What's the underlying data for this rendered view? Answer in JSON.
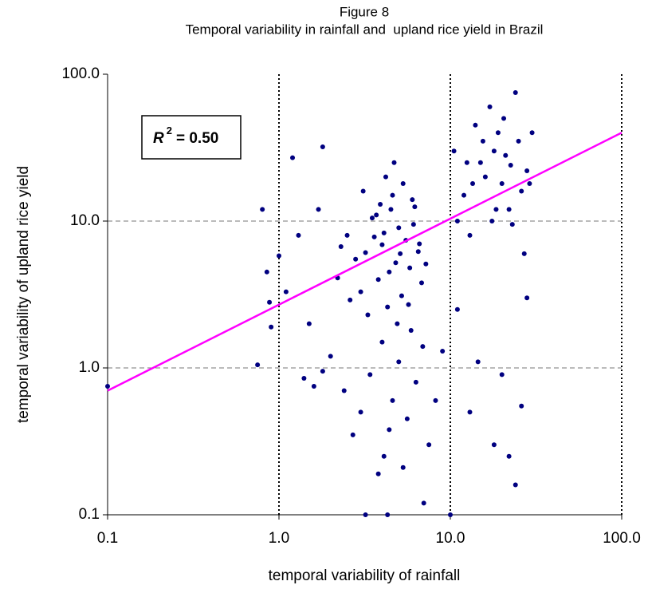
{
  "chart_data": {
    "type": "scatter",
    "title": "Figure 8",
    "subtitle": "Temporal variability in rainfall and  upland rice yield in Brazil",
    "x_label": "temporal variability of rainfall",
    "y_label": "temporal variability of upland rice yield",
    "xscale": "log",
    "yscale": "log",
    "xlim": [
      0.1,
      100
    ],
    "ylim": [
      0.1,
      100
    ],
    "xticks": [
      {
        "value": 0.1,
        "label": "0.1"
      },
      {
        "value": 1,
        "label": "1.0"
      },
      {
        "value": 10,
        "label": "10.0"
      },
      {
        "value": 100,
        "label": "100.0"
      }
    ],
    "yticks": [
      {
        "value": 0.1,
        "label": "0.1"
      },
      {
        "value": 1,
        "label": "1.0"
      },
      {
        "value": 10,
        "label": "10.0"
      },
      {
        "value": 100,
        "label": "100.0"
      }
    ],
    "grid": true,
    "annotation": {
      "text": "R",
      "superscript": "2",
      "value_text": "= 0.50"
    },
    "trendline": {
      "x": [
        0.1,
        100
      ],
      "y": [
        0.7,
        40
      ],
      "color": "#ff00ff"
    },
    "series": [
      {
        "color": "#000080",
        "x": [
          3.2,
          4.1,
          4.8,
          5.5,
          3.8,
          4.5,
          5.2,
          6.1,
          3.5,
          4.3,
          5.8,
          4.0,
          2.8,
          6.5,
          3.0,
          4.6,
          5.0,
          3.6,
          4.9,
          6.8,
          2.5,
          5.3,
          3.9,
          4.4,
          6.2,
          3.3,
          5.7,
          4.2,
          2.2,
          6.6,
          4.7,
          3.1,
          5.9,
          2.6,
          7.2,
          4.0,
          3.7,
          5.1,
          2.3,
          6.0,
          2.0,
          3.4,
          4.6,
          5.6,
          2.7,
          4.1,
          6.3,
          3.8,
          7.5,
          2.4,
          5.0,
          3.0,
          6.9,
          1.8,
          4.4,
          8.2,
          5.3,
          3.2,
          4.3,
          7.0,
          1.6,
          9.0,
          0.8,
          0.85,
          0.9,
          0.75,
          1.1,
          1.2,
          1.3,
          1.5,
          1.8,
          1.0,
          1.7,
          1.4,
          0.88,
          12.0,
          15.0,
          18.0,
          20.0,
          22.0,
          25.0,
          14.0,
          17.0,
          24.0,
          28.0,
          11.0,
          13.0,
          16.0,
          19.0,
          21.0,
          23.0,
          26.0,
          30.0,
          10.5,
          18.5,
          15.5,
          27.0,
          20.5,
          13.5,
          22.5,
          29.0,
          12.5,
          17.5,
          11.0,
          14.5,
          18.0,
          22.0,
          24.0,
          26.0,
          20.0,
          28.0,
          13.0,
          10.0,
          0.1
        ],
        "y": [
          6.1,
          8.3,
          5.2,
          7.4,
          4.0,
          12.0,
          3.1,
          9.5,
          10.5,
          2.6,
          4.8,
          6.9,
          5.5,
          6.2,
          3.3,
          15.0,
          9.0,
          7.8,
          2.0,
          3.8,
          8.0,
          18.0,
          13.0,
          4.5,
          12.5,
          2.3,
          2.7,
          20.0,
          4.1,
          7.0,
          25.0,
          16.0,
          1.8,
          2.9,
          5.1,
          1.5,
          11.0,
          6.0,
          6.7,
          14.0,
          1.2,
          0.9,
          0.6,
          0.45,
          0.35,
          0.25,
          0.8,
          0.19,
          0.3,
          0.7,
          1.1,
          0.5,
          1.4,
          0.95,
          0.38,
          0.6,
          0.21,
          0.1,
          0.1,
          0.12,
          0.75,
          1.3,
          12.0,
          4.5,
          1.9,
          1.05,
          3.3,
          27.0,
          8.0,
          2.0,
          32.0,
          5.8,
          12.0,
          0.85,
          2.8,
          15.0,
          25.0,
          30.0,
          18.0,
          12.0,
          35.0,
          45.0,
          60.0,
          75.0,
          22.0,
          10.0,
          8.0,
          20.0,
          40.0,
          28.0,
          9.5,
          16.0,
          40.0,
          30.0,
          12.0,
          35.0,
          6.0,
          50.0,
          18.0,
          24.0,
          18.0,
          25.0,
          10.0,
          2.5,
          1.1,
          0.3,
          0.25,
          0.16,
          0.55,
          0.9,
          3.0,
          0.5,
          0.1,
          0.75
        ]
      }
    ]
  }
}
